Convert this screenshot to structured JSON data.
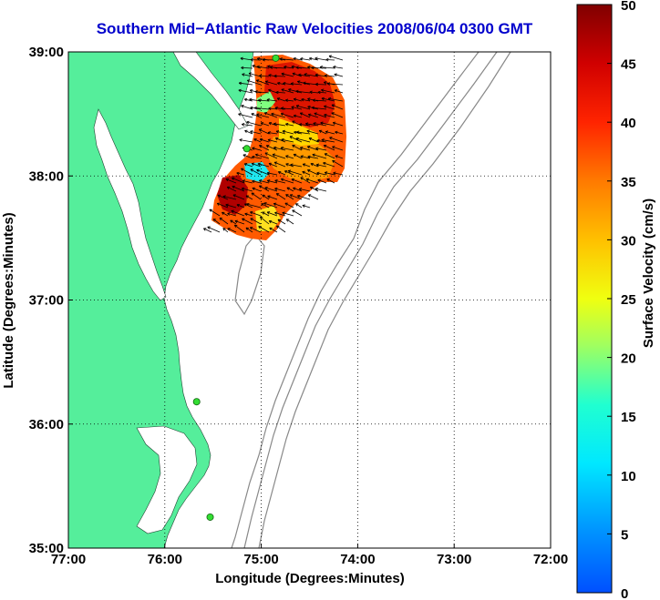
{
  "chart_data": {
    "type": "map",
    "title": "Southern Mid−Atlantic Raw Velocities 2008/06/04 0300 GMT",
    "xlabel": "Longitude (Degrees:Minutes)",
    "ylabel": "Latitude (Degrees:Minutes)",
    "xlim": [
      -77.0,
      -72.0
    ],
    "ylim": [
      35.0,
      39.0
    ],
    "x_ticks": [
      {
        "value": -77.0,
        "label": "77:00"
      },
      {
        "value": -76.0,
        "label": "76:00"
      },
      {
        "value": -75.0,
        "label": "75:00"
      },
      {
        "value": -74.0,
        "label": "74:00"
      },
      {
        "value": -73.0,
        "label": "73:00"
      },
      {
        "value": -72.0,
        "label": "72:00"
      }
    ],
    "y_ticks": [
      {
        "value": 39.0,
        "label": "39:00"
      },
      {
        "value": 38.0,
        "label": "38:00"
      },
      {
        "value": 37.0,
        "label": "37:00"
      },
      {
        "value": 36.0,
        "label": "36:00"
      },
      {
        "value": 35.0,
        "label": "35:00"
      }
    ],
    "grid": true,
    "colorbar": {
      "label": "Surface Velocity (cm/s)",
      "min": 0,
      "max": 50,
      "ticks": [
        {
          "value": 0,
          "label": "0"
        },
        {
          "value": 5,
          "label": "5"
        },
        {
          "value": 10,
          "label": "10"
        },
        {
          "value": 15,
          "label": "15"
        },
        {
          "value": 20,
          "label": "20"
        },
        {
          "value": 25,
          "label": "25"
        },
        {
          "value": 30,
          "label": "30"
        },
        {
          "value": 35,
          "label": "35"
        },
        {
          "value": 40,
          "label": "40"
        },
        {
          "value": 45,
          "label": "45"
        },
        {
          "value": 50,
          "label": "50"
        }
      ]
    },
    "radar_sites": [
      {
        "lon": -74.85,
        "lat": 38.95
      },
      {
        "lon": -75.15,
        "lat": 38.22
      },
      {
        "lon": -75.67,
        "lat": 36.18
      },
      {
        "lon": -75.53,
        "lat": 35.25
      }
    ],
    "colors": {
      "land": "#55ee9b",
      "title": "#0000cc",
      "site_marker": "#33dd33",
      "contour": "#888888"
    }
  }
}
